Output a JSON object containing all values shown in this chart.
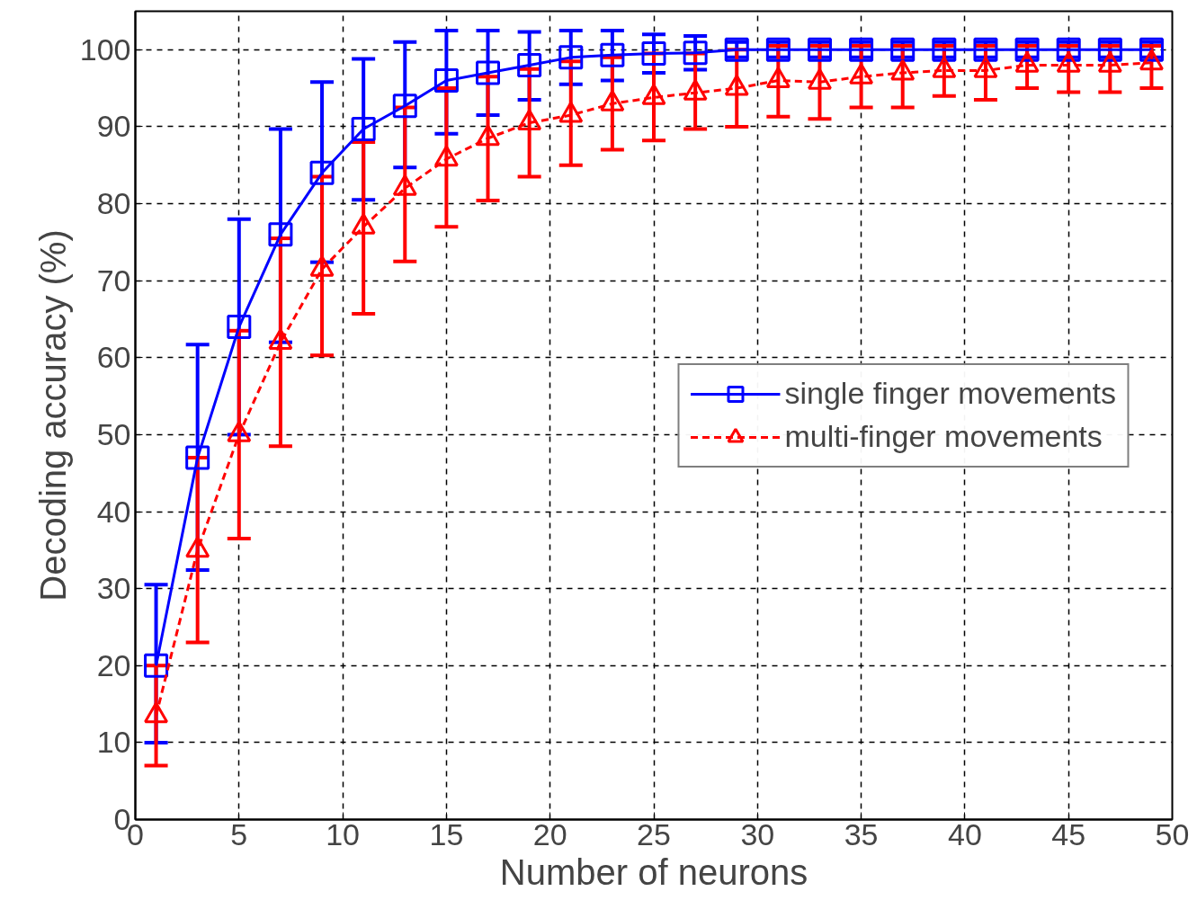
{
  "chart_data": {
    "type": "line",
    "xlabel": "Number of neurons",
    "ylabel": "Decoding accuracy (%)",
    "x": [
      1,
      3,
      5,
      7,
      9,
      11,
      13,
      15,
      17,
      19,
      21,
      23,
      25,
      27,
      29,
      31,
      33,
      35,
      37,
      39,
      41,
      43,
      45,
      47,
      49
    ],
    "xlim": [
      0,
      50
    ],
    "xticks": [
      0,
      5,
      10,
      15,
      20,
      25,
      30,
      35,
      40,
      45,
      50
    ],
    "ylim": [
      0,
      105
    ],
    "yticks": [
      0,
      10,
      20,
      30,
      40,
      50,
      60,
      70,
      80,
      90,
      100
    ],
    "grid": true,
    "legend": "right",
    "series": [
      {
        "name": "single finger movements",
        "color": "#0000ff",
        "marker": "square",
        "line_style": "solid",
        "values": [
          20,
          47,
          64,
          76,
          84,
          89.7,
          92.7,
          96,
          97,
          98,
          99,
          99.3,
          99.5,
          99.6,
          100,
          100,
          100,
          100,
          100,
          100,
          100,
          100,
          100,
          100,
          100
        ],
        "errors": [
          [
            10,
            30.5
          ],
          [
            32.4,
            61.7
          ],
          [
            50,
            78
          ],
          [
            62,
            89.7
          ],
          [
            72.4,
            95.8
          ],
          [
            80.5,
            98.8
          ],
          [
            84.7,
            101
          ],
          [
            89.1,
            102.5
          ],
          [
            91.5,
            102.5
          ],
          [
            93.5,
            102.3
          ],
          [
            95.5,
            102.5
          ],
          [
            96,
            102.5
          ],
          [
            97,
            102
          ],
          [
            97.4,
            101.8
          ],
          [
            99,
            101
          ],
          [
            99,
            101
          ],
          [
            99,
            101
          ],
          [
            99,
            101
          ],
          [
            99,
            101
          ],
          [
            99,
            101
          ],
          [
            99,
            101
          ],
          [
            99,
            101
          ],
          [
            99,
            101
          ],
          [
            99,
            101
          ],
          [
            99,
            101
          ]
        ]
      },
      {
        "name": "multi-finger movements",
        "color": "#ff0000",
        "marker": "triangle",
        "line_style": "dashed",
        "values": [
          13.5,
          35,
          50,
          62,
          71.5,
          77,
          82,
          85.8,
          88.5,
          90.5,
          91.5,
          93,
          93.8,
          94.4,
          95,
          96,
          95.8,
          96.5,
          97,
          97.3,
          97.3,
          98,
          98,
          98,
          98.3
        ],
        "errors": [
          [
            7,
            20
          ],
          [
            23,
            47
          ],
          [
            36.5,
            63.5
          ],
          [
            48.5,
            75.5
          ],
          [
            60.3,
            83.5
          ],
          [
            65.7,
            88
          ],
          [
            72.5,
            92.5
          ],
          [
            77,
            95
          ],
          [
            80.4,
            96.5
          ],
          [
            83.5,
            97.5
          ],
          [
            85,
            98.5
          ],
          [
            87,
            99
          ],
          [
            88.2,
            99.5
          ],
          [
            89.7,
            99.5
          ],
          [
            90,
            100
          ],
          [
            91.3,
            100.5
          ],
          [
            91,
            100.5
          ],
          [
            92.5,
            100.5
          ],
          [
            92.5,
            100.5
          ],
          [
            94,
            100.5
          ],
          [
            93.5,
            100.5
          ],
          [
            95,
            100.5
          ],
          [
            94.5,
            100.5
          ],
          [
            94.5,
            100.5
          ],
          [
            95,
            100.5
          ]
        ]
      }
    ]
  }
}
